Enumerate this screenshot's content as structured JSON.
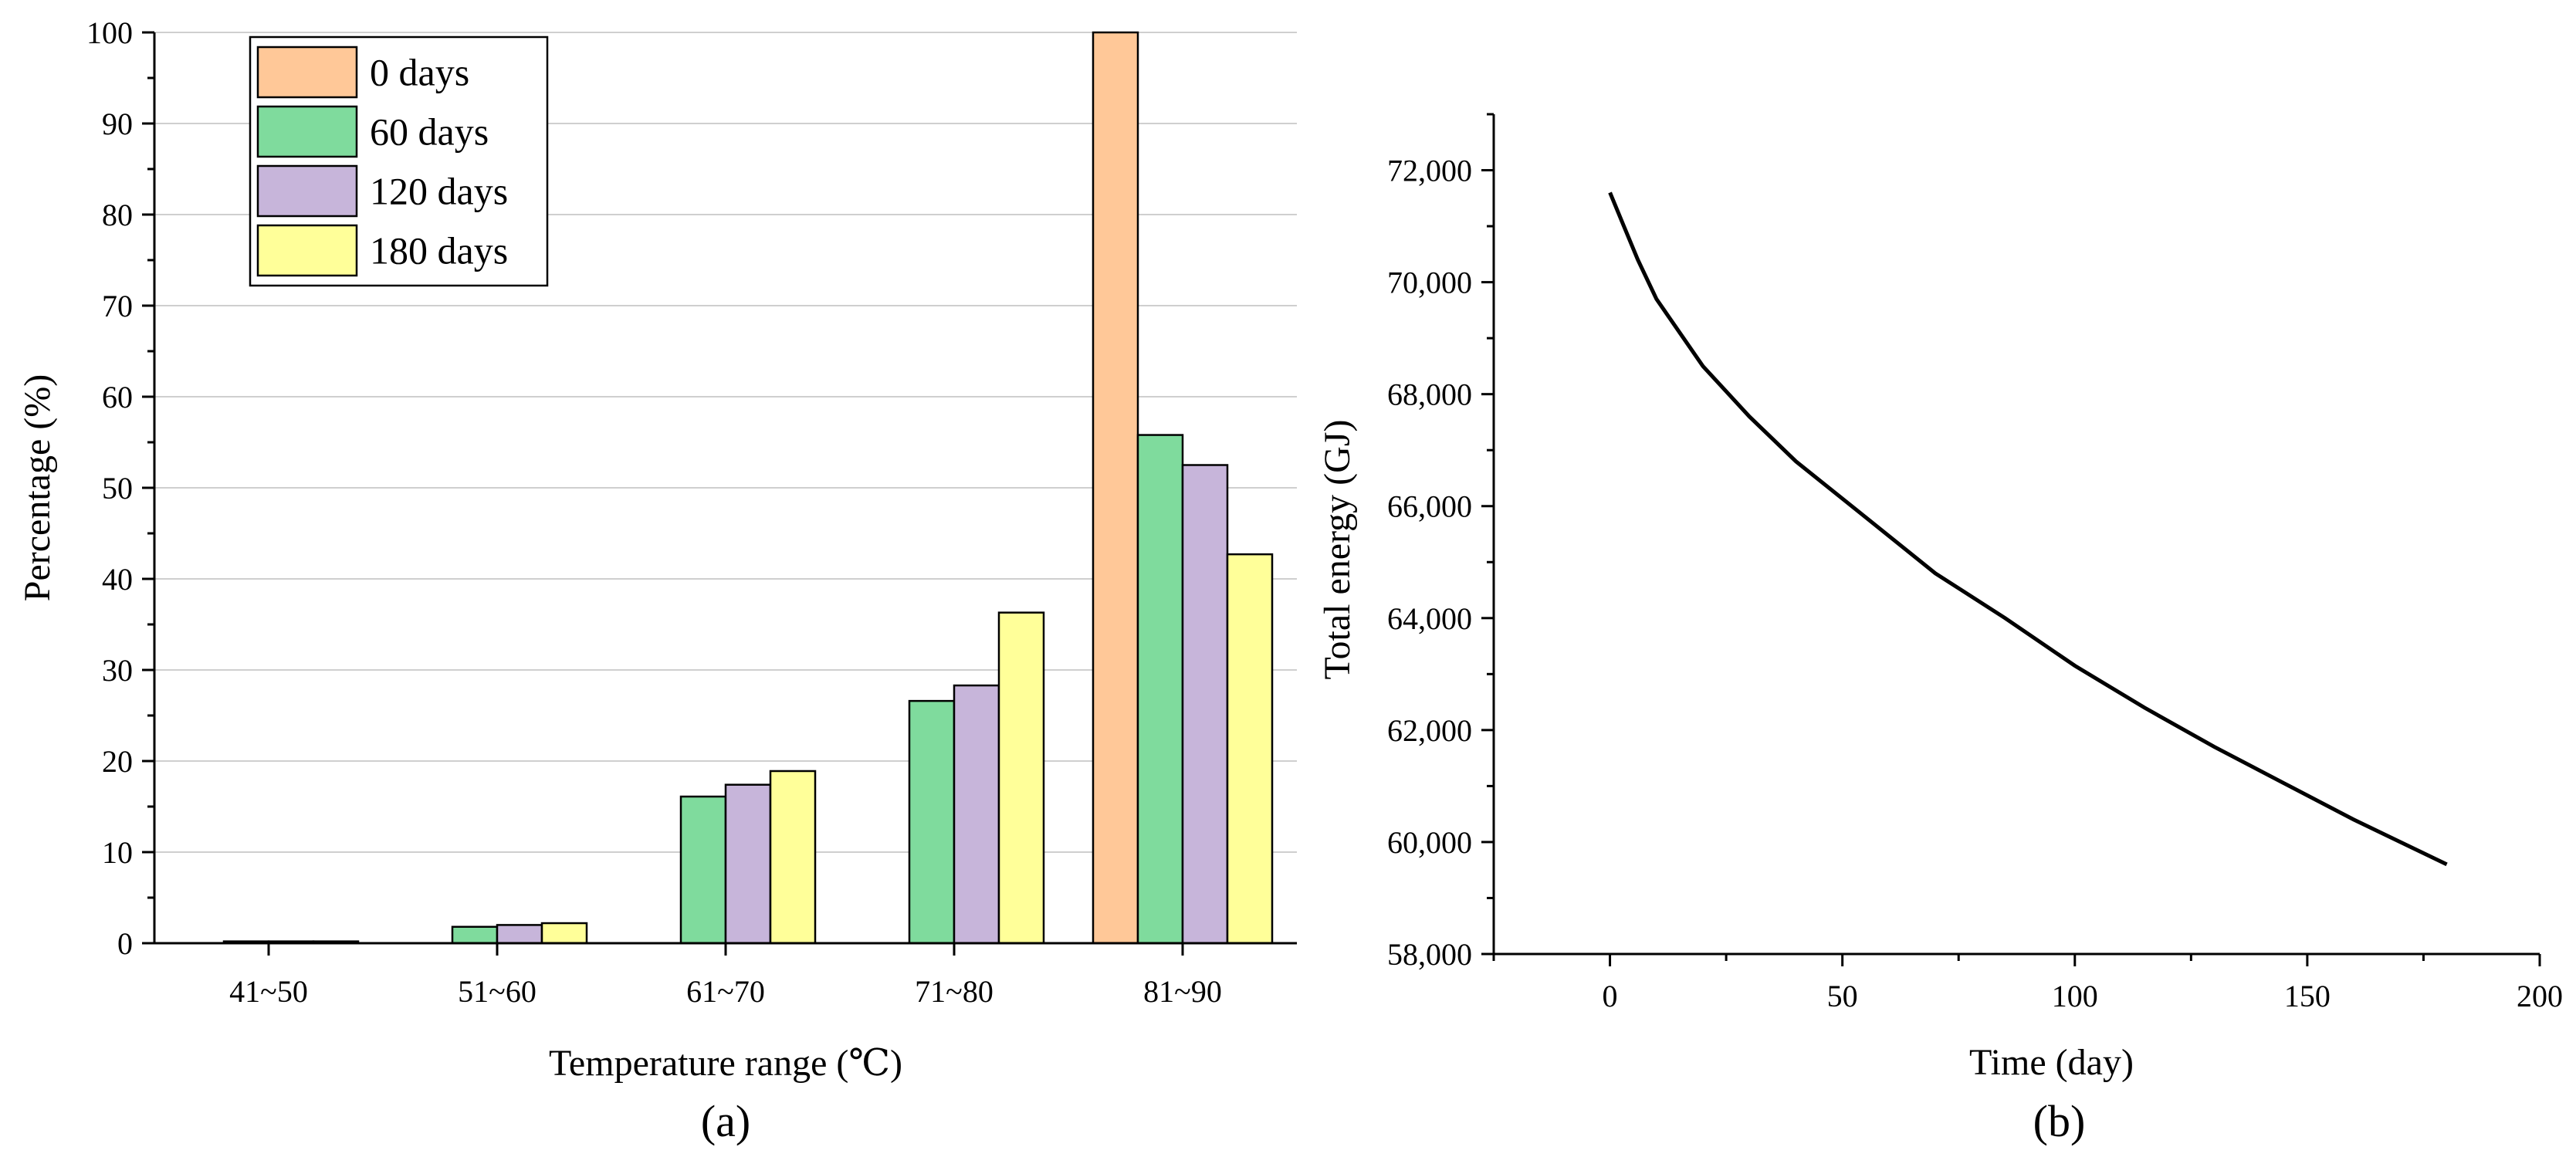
{
  "chart_data": [
    {
      "panel": "(a)",
      "type": "bar",
      "title": "",
      "xlabel": "Temperature range (℃)",
      "ylabel": "Percentage (%)",
      "categories": [
        "41~50",
        "51~60",
        "61~70",
        "71~80",
        "81~90"
      ],
      "ylim": [
        0,
        100
      ],
      "yticks": [
        0,
        10,
        20,
        30,
        40,
        50,
        60,
        70,
        80,
        90,
        100
      ],
      "grid": true,
      "legend_position": "top-left",
      "series": [
        {
          "name": "0 days",
          "color": "#FFC898",
          "values": [
            0,
            0,
            0,
            0,
            100
          ]
        },
        {
          "name": "60 days",
          "color": "#7FDB9D",
          "values": [
            0.2,
            1.8,
            16.1,
            26.6,
            55.8
          ]
        },
        {
          "name": "120 days",
          "color": "#C7B5DA",
          "values": [
            0.2,
            2.0,
            17.4,
            28.3,
            52.5
          ]
        },
        {
          "name": "180 days",
          "color": "#FFFF99",
          "values": [
            0.2,
            2.2,
            18.9,
            36.3,
            42.7
          ]
        }
      ]
    },
    {
      "panel": "(b)",
      "type": "line",
      "title": "",
      "xlabel": "Time (day)",
      "ylabel": "Total energy (GJ)",
      "xlim": [
        -25,
        200
      ],
      "ylim": [
        58000,
        73000
      ],
      "xticks": [
        0,
        50,
        100,
        150,
        200
      ],
      "ytick_labels": [
        "58,000",
        "60,000",
        "62,000",
        "64,000",
        "66,000",
        "68,000",
        "70,000",
        "72,000"
      ],
      "yticks": [
        58000,
        60000,
        62000,
        64000,
        66000,
        68000,
        70000,
        72000
      ],
      "grid": false,
      "series": [
        {
          "name": "Total energy",
          "color": "#000000",
          "x": [
            0,
            3,
            6,
            10,
            15,
            20,
            30,
            40,
            55,
            70,
            85,
            100,
            115,
            130,
            145,
            160,
            170,
            180
          ],
          "y": [
            71600,
            71000,
            70400,
            69700,
            69100,
            68500,
            67600,
            66800,
            65800,
            64800,
            64000,
            63150,
            62400,
            61700,
            61050,
            60400,
            60000,
            59600
          ]
        }
      ]
    }
  ]
}
